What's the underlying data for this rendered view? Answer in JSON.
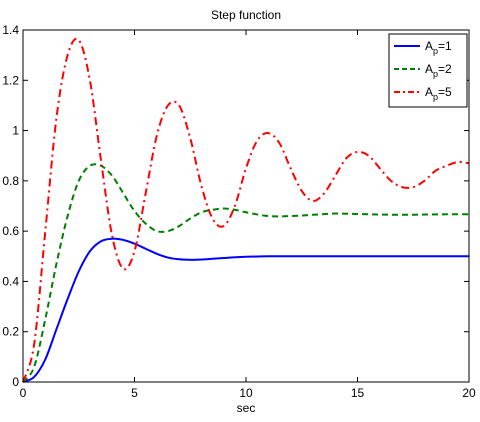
{
  "chart_data": {
    "type": "line",
    "title": "Step function",
    "xlabel": "sec",
    "ylabel": "",
    "xlim": [
      0,
      20
    ],
    "ylim": [
      0,
      1.4
    ],
    "xticks": [
      0,
      5,
      10,
      15,
      20
    ],
    "yticks": [
      0,
      0.2,
      0.4,
      0.6,
      0.8,
      1,
      1.2,
      1.4
    ],
    "xtick_labels": [
      "0",
      "5",
      "10",
      "15",
      "20"
    ],
    "ytick_labels": [
      "0",
      "0.2",
      "0.4",
      "0.6",
      "0.8",
      "1",
      "1.2",
      "1.4"
    ],
    "grid": false,
    "legend_position": "top-right",
    "series": [
      {
        "name_base": "A",
        "name_sub": "p",
        "name_suffix": "=1",
        "color": "#0000ff",
        "style": "solid",
        "x": [
          0,
          0.5,
          1,
          1.5,
          2,
          2.5,
          3,
          3.5,
          4,
          4.5,
          5,
          5.5,
          6,
          6.5,
          7,
          7.5,
          8,
          8.5,
          9,
          9.5,
          10,
          11,
          12,
          13,
          14,
          15,
          16,
          17,
          18,
          19,
          20
        ],
        "y": [
          0,
          0.02,
          0.09,
          0.21,
          0.33,
          0.44,
          0.52,
          0.56,
          0.57,
          0.565,
          0.55,
          0.53,
          0.51,
          0.495,
          0.488,
          0.486,
          0.487,
          0.49,
          0.493,
          0.496,
          0.498,
          0.5,
          0.5,
          0.5,
          0.5,
          0.5,
          0.5,
          0.5,
          0.5,
          0.5,
          0.5
        ]
      },
      {
        "name_base": "A",
        "name_sub": "p",
        "name_suffix": "=2",
        "color": "#008000",
        "style": "dashed",
        "x": [
          0,
          0.5,
          1,
          1.5,
          2,
          2.5,
          3,
          3.5,
          4,
          4.5,
          5,
          5.5,
          6,
          6.5,
          7,
          7.5,
          8,
          8.5,
          9,
          9.5,
          10,
          11,
          12,
          13,
          14,
          15,
          16,
          17,
          18,
          19,
          20
        ],
        "y": [
          0,
          0.06,
          0.25,
          0.47,
          0.66,
          0.8,
          0.86,
          0.86,
          0.82,
          0.75,
          0.68,
          0.63,
          0.6,
          0.6,
          0.62,
          0.65,
          0.675,
          0.685,
          0.69,
          0.685,
          0.675,
          0.66,
          0.66,
          0.665,
          0.67,
          0.668,
          0.666,
          0.665,
          0.666,
          0.667,
          0.667
        ]
      },
      {
        "name_base": "A",
        "name_sub": "p",
        "name_suffix": "=5",
        "color": "#ff0000",
        "style": "dashdot",
        "x": [
          0,
          0.5,
          1,
          1.5,
          2,
          2.5,
          3,
          3.5,
          4,
          4.5,
          5,
          5.5,
          6,
          6.5,
          7,
          7.5,
          8,
          8.5,
          9,
          9.5,
          10,
          10.5,
          11,
          11.5,
          12,
          12.5,
          13,
          13.5,
          14,
          14.5,
          15,
          15.5,
          16,
          16.5,
          17,
          17.5,
          18,
          18.5,
          19,
          19.5,
          20
        ],
        "y": [
          0,
          0.15,
          0.6,
          1.05,
          1.3,
          1.36,
          1.2,
          0.88,
          0.58,
          0.45,
          0.52,
          0.75,
          0.98,
          1.1,
          1.1,
          0.97,
          0.78,
          0.65,
          0.62,
          0.7,
          0.85,
          0.96,
          0.99,
          0.95,
          0.85,
          0.76,
          0.72,
          0.75,
          0.82,
          0.89,
          0.915,
          0.9,
          0.85,
          0.8,
          0.775,
          0.775,
          0.8,
          0.84,
          0.86,
          0.875,
          0.87
        ]
      }
    ]
  }
}
